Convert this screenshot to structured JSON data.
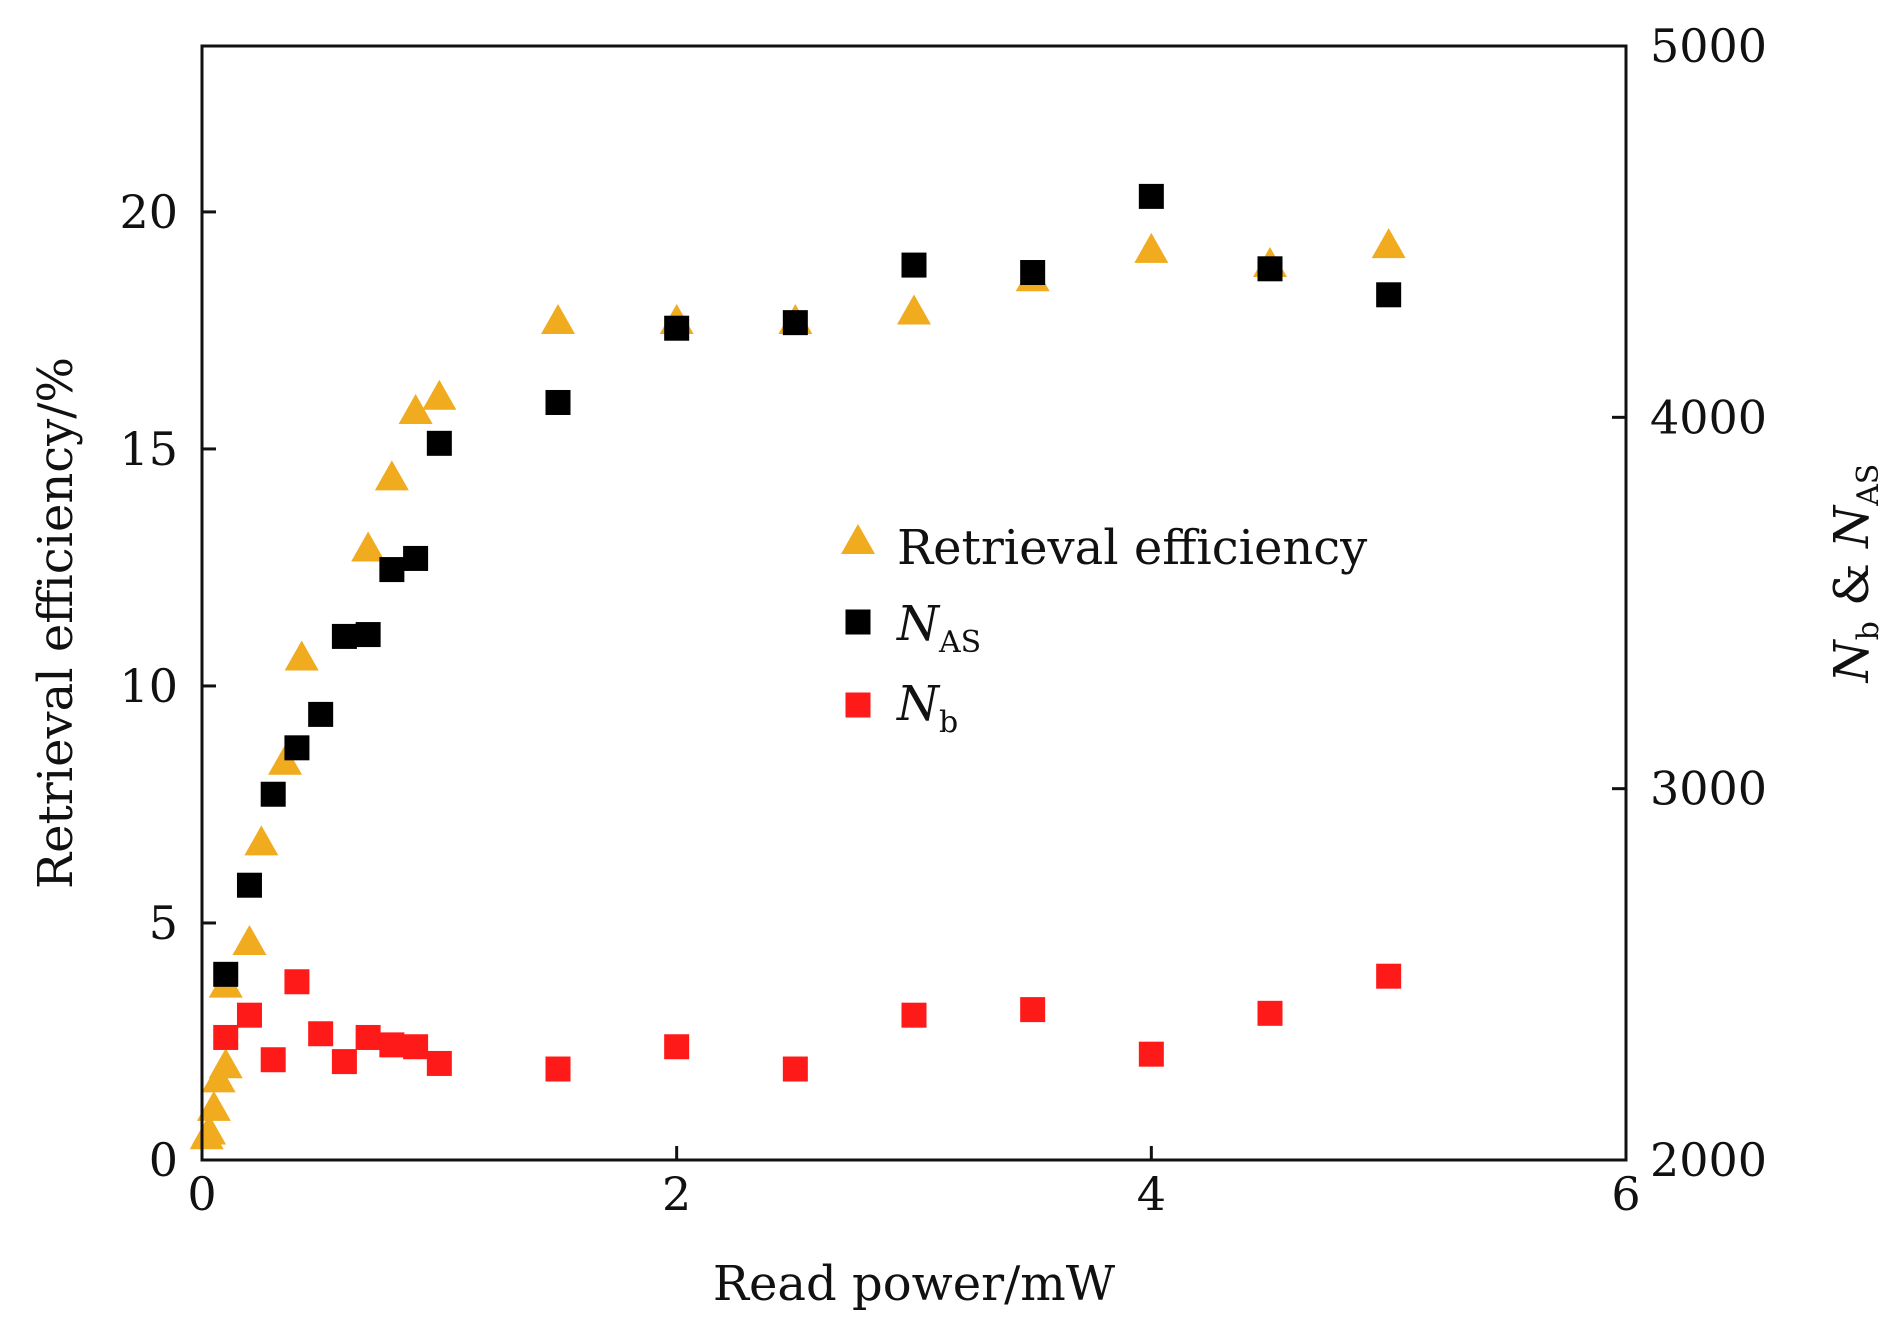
{
  "chart_data": {
    "type": "scatter",
    "xlabel": "Read power/mW",
    "ylabel_left": "Retrieval efficiency/%",
    "ylabel_right": {
      "n_b_main": "N",
      "n_b_sub": "b",
      "joiner": " & ",
      "n_as_main": "N",
      "n_as_sub": "AS"
    },
    "xlim": [
      0,
      6
    ],
    "ylim_left": [
      0,
      23.5
    ],
    "ylim_right": [
      2000,
      5000
    ],
    "x_ticks": [
      "0",
      "2",
      "4",
      "6"
    ],
    "y_left_ticks": [
      "0",
      "5",
      "10",
      "15",
      "20"
    ],
    "y_right_ticks": [
      "2000",
      "3000",
      "4000",
      "5000"
    ],
    "x_tick_values": [
      0,
      2,
      4,
      6
    ],
    "y_left_tick_values": [
      0,
      5,
      10,
      15,
      20
    ],
    "y_right_tick_values": [
      2000,
      3000,
      4000,
      5000
    ],
    "grid": false,
    "legend_position": "center-right",
    "series": [
      {
        "name": "Retrieval efficiency",
        "axis": "left",
        "marker": "triangle",
        "color": "#f0ab1f",
        "points": [
          [
            0.02,
            0.5
          ],
          [
            0.03,
            0.6
          ],
          [
            0.05,
            1.1
          ],
          [
            0.07,
            1.7
          ],
          [
            0.1,
            2.0
          ],
          [
            0.1,
            3.7
          ],
          [
            0.2,
            4.6
          ],
          [
            0.25,
            6.7
          ],
          [
            0.35,
            8.4
          ],
          [
            0.42,
            10.6
          ],
          [
            0.7,
            12.9
          ],
          [
            0.8,
            14.4
          ],
          [
            0.9,
            15.8
          ],
          [
            1.0,
            16.1
          ],
          [
            1.5,
            17.7
          ],
          [
            2.0,
            17.7
          ],
          [
            2.5,
            17.7
          ],
          [
            3.0,
            17.9
          ],
          [
            3.5,
            18.6
          ],
          [
            4.0,
            19.2
          ],
          [
            4.5,
            18.9
          ],
          [
            5.0,
            19.3
          ]
        ]
      },
      {
        "name": "AS",
        "name_main": "N",
        "name_sub": "AS",
        "axis": "right",
        "marker": "square",
        "color": "#000000",
        "points": [
          [
            0.1,
            2500
          ],
          [
            0.2,
            2740
          ],
          [
            0.3,
            2985
          ],
          [
            0.4,
            3110
          ],
          [
            0.5,
            3200
          ],
          [
            0.6,
            3410
          ],
          [
            0.7,
            3415
          ],
          [
            0.8,
            3590
          ],
          [
            0.9,
            3620
          ],
          [
            1.0,
            3930
          ],
          [
            1.5,
            4040
          ],
          [
            2.0,
            4240
          ],
          [
            2.5,
            4255
          ],
          [
            3.0,
            4410
          ],
          [
            3.5,
            4390
          ],
          [
            4.0,
            4595
          ],
          [
            4.5,
            4400
          ],
          [
            5.0,
            4330
          ]
        ]
      },
      {
        "name": "b",
        "name_main": "N",
        "name_sub": "b",
        "axis": "right",
        "marker": "square",
        "color": "#ff1a1a",
        "points": [
          [
            0.1,
            2330
          ],
          [
            0.2,
            2390
          ],
          [
            0.3,
            2270
          ],
          [
            0.4,
            2480
          ],
          [
            0.5,
            2340
          ],
          [
            0.6,
            2265
          ],
          [
            0.7,
            2330
          ],
          [
            0.8,
            2310
          ],
          [
            0.9,
            2305
          ],
          [
            1.0,
            2260
          ],
          [
            1.5,
            2245
          ],
          [
            2.0,
            2305
          ],
          [
            2.5,
            2245
          ],
          [
            3.0,
            2390
          ],
          [
            3.5,
            2405
          ],
          [
            4.0,
            2285
          ],
          [
            4.5,
            2395
          ],
          [
            5.0,
            2495
          ]
        ]
      }
    ]
  }
}
